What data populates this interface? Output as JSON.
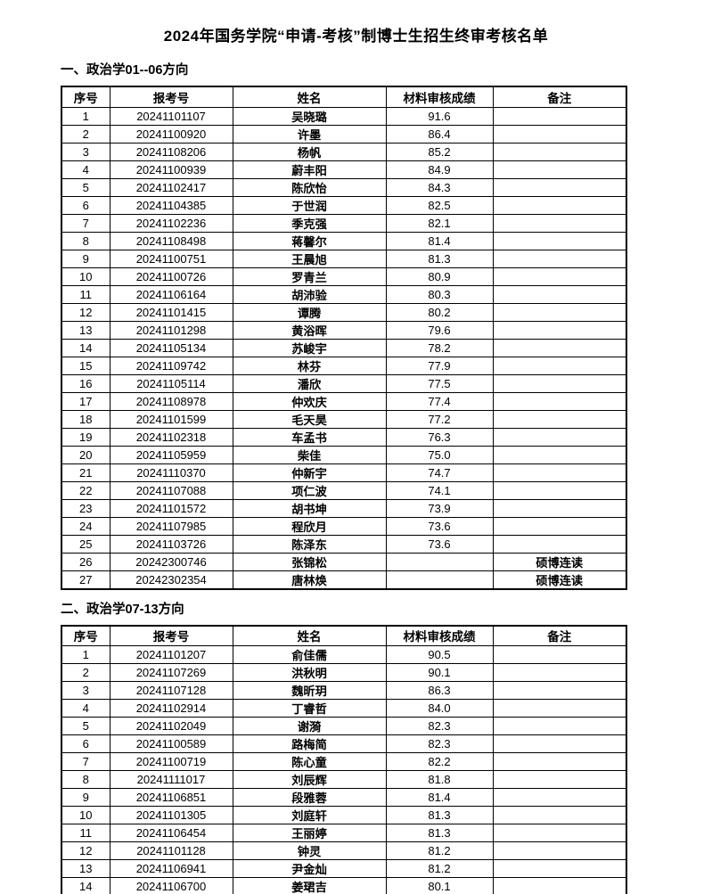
{
  "page": {
    "title": "2024年国务学院“申请-考核”制博士生招生终审考核名单"
  },
  "columns": [
    "序号",
    "报考号",
    "姓名",
    "材料审核成绩",
    "备注"
  ],
  "sections": [
    {
      "heading": "一、政治学01--06方向",
      "rows": [
        {
          "no": "1",
          "id": "20241101107",
          "name": "吴晓璐",
          "score": "91.6",
          "note": ""
        },
        {
          "no": "2",
          "id": "20241100920",
          "name": "许墨",
          "score": "86.4",
          "note": ""
        },
        {
          "no": "3",
          "id": "20241108206",
          "name": "杨帆",
          "score": "85.2",
          "note": ""
        },
        {
          "no": "4",
          "id": "20241100939",
          "name": "蔚丰阳",
          "score": "84.9",
          "note": ""
        },
        {
          "no": "5",
          "id": "20241102417",
          "name": "陈欣怡",
          "score": "84.3",
          "note": ""
        },
        {
          "no": "6",
          "id": "20241104385",
          "name": "于世润",
          "score": "82.5",
          "note": ""
        },
        {
          "no": "7",
          "id": "20241102236",
          "name": "季克强",
          "score": "82.1",
          "note": ""
        },
        {
          "no": "8",
          "id": "20241108498",
          "name": "蒋馨尔",
          "score": "81.4",
          "note": ""
        },
        {
          "no": "9",
          "id": "20241100751",
          "name": "王晨旭",
          "score": "81.3",
          "note": ""
        },
        {
          "no": "10",
          "id": "20241100726",
          "name": "罗青兰",
          "score": "80.9",
          "note": ""
        },
        {
          "no": "11",
          "id": "20241106164",
          "name": "胡沛验",
          "score": "80.3",
          "note": ""
        },
        {
          "no": "12",
          "id": "20241101415",
          "name": "谭腾",
          "score": "80.2",
          "note": ""
        },
        {
          "no": "13",
          "id": "20241101298",
          "name": "黄浴晖",
          "score": "79.6",
          "note": ""
        },
        {
          "no": "14",
          "id": "20241105134",
          "name": "苏峻宇",
          "score": "78.2",
          "note": ""
        },
        {
          "no": "15",
          "id": "20241109742",
          "name": "林芬",
          "score": "77.9",
          "note": ""
        },
        {
          "no": "16",
          "id": "20241105114",
          "name": "潘欣",
          "score": "77.5",
          "note": ""
        },
        {
          "no": "17",
          "id": "20241108978",
          "name": "仲欢庆",
          "score": "77.4",
          "note": ""
        },
        {
          "no": "18",
          "id": "20241101599",
          "name": "毛天昊",
          "score": "77.2",
          "note": ""
        },
        {
          "no": "19",
          "id": "20241102318",
          "name": "车孟书",
          "score": "76.3",
          "note": ""
        },
        {
          "no": "20",
          "id": "20241105959",
          "name": "柴佳",
          "score": "75.0",
          "note": ""
        },
        {
          "no": "21",
          "id": "20241110370",
          "name": "仲新宇",
          "score": "74.7",
          "note": ""
        },
        {
          "no": "22",
          "id": "20241107088",
          "name": "项仁波",
          "score": "74.1",
          "note": ""
        },
        {
          "no": "23",
          "id": "20241101572",
          "name": "胡书坤",
          "score": "73.9",
          "note": ""
        },
        {
          "no": "24",
          "id": "20241107985",
          "name": "程欣月",
          "score": "73.6",
          "note": ""
        },
        {
          "no": "25",
          "id": "20241103726",
          "name": "陈泽东",
          "score": "73.6",
          "note": ""
        },
        {
          "no": "26",
          "id": "20242300746",
          "name": "张锦松",
          "score": "",
          "note": "硕博连读"
        },
        {
          "no": "27",
          "id": "20242302354",
          "name": "唐林焕",
          "score": "",
          "note": "硕博连读"
        }
      ]
    },
    {
      "heading": "二、政治学07-13方向",
      "rows": [
        {
          "no": "1",
          "id": "20241101207",
          "name": "俞佳儒",
          "score": "90.5",
          "note": ""
        },
        {
          "no": "2",
          "id": "20241107269",
          "name": "洪秋明",
          "score": "90.1",
          "note": ""
        },
        {
          "no": "3",
          "id": "20241107128",
          "name": "魏昕玥",
          "score": "86.3",
          "note": ""
        },
        {
          "no": "4",
          "id": "20241102914",
          "name": "丁睿哲",
          "score": "84.0",
          "note": ""
        },
        {
          "no": "5",
          "id": "20241102049",
          "name": "谢漪",
          "score": "82.3",
          "note": ""
        },
        {
          "no": "6",
          "id": "20241100589",
          "name": "路梅简",
          "score": "82.3",
          "note": ""
        },
        {
          "no": "7",
          "id": "20241100719",
          "name": "陈心童",
          "score": "82.2",
          "note": ""
        },
        {
          "no": "8",
          "id": "20241111017",
          "name": "刘辰辉",
          "score": "81.8",
          "note": ""
        },
        {
          "no": "9",
          "id": "20241106851",
          "name": "段雅蓉",
          "score": "81.4",
          "note": ""
        },
        {
          "no": "10",
          "id": "20241101305",
          "name": "刘庭轩",
          "score": "81.3",
          "note": ""
        },
        {
          "no": "11",
          "id": "20241106454",
          "name": "王丽婷",
          "score": "81.3",
          "note": ""
        },
        {
          "no": "12",
          "id": "20241101128",
          "name": "钟灵",
          "score": "81.2",
          "note": ""
        },
        {
          "no": "13",
          "id": "20241106941",
          "name": "尹金灿",
          "score": "81.2",
          "note": ""
        },
        {
          "no": "14",
          "id": "20241106700",
          "name": "姜珺吉",
          "score": "80.1",
          "note": ""
        }
      ]
    }
  ]
}
